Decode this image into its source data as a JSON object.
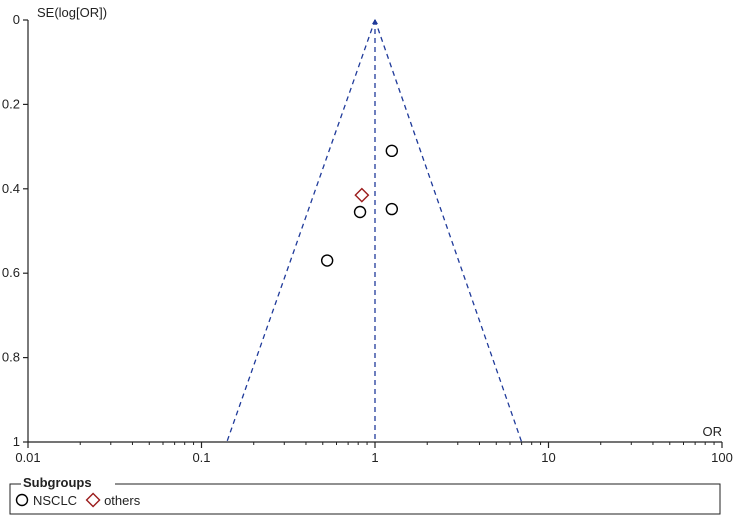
{
  "chart_data": {
    "type": "scatter",
    "title": "",
    "xlabel": "OR",
    "ylabel": "SE(log[OR])",
    "x_scale": "log",
    "xlim": [
      0.01,
      100
    ],
    "ylim": [
      0,
      1
    ],
    "y_inverted": true,
    "x_ticks": [
      "0.01",
      "0.1",
      "1",
      "10",
      "100"
    ],
    "y_ticks": [
      "0",
      "0.2",
      "0.4",
      "0.6",
      "0.8",
      "1"
    ],
    "x_tick_values": [
      0.01,
      0.1,
      1,
      10,
      100
    ],
    "y_tick_values": [
      0,
      0.2,
      0.4,
      0.6,
      0.8,
      1
    ],
    "pooled_or": 1,
    "funnel_limits": {
      "apex_se": 0,
      "bottom_se": 1,
      "lower_or_at_bottom": 0.14,
      "upper_or_at_bottom": 7.0
    },
    "grid": false,
    "legend_position": "bottom",
    "legend_title": "Subgroups",
    "series": [
      {
        "name": "NSCLC",
        "marker": "circle",
        "color": "#000000",
        "points": [
          {
            "x": 1.25,
            "y": 0.31
          },
          {
            "x": 0.82,
            "y": 0.455
          },
          {
            "x": 1.25,
            "y": 0.448
          },
          {
            "x": 0.53,
            "y": 0.57
          }
        ]
      },
      {
        "name": "others",
        "marker": "diamond",
        "color": "#9b1c1c",
        "points": [
          {
            "x": 0.84,
            "y": 0.415
          }
        ]
      }
    ],
    "line_color": "#1f3a9a",
    "axis_color": "#222222"
  }
}
